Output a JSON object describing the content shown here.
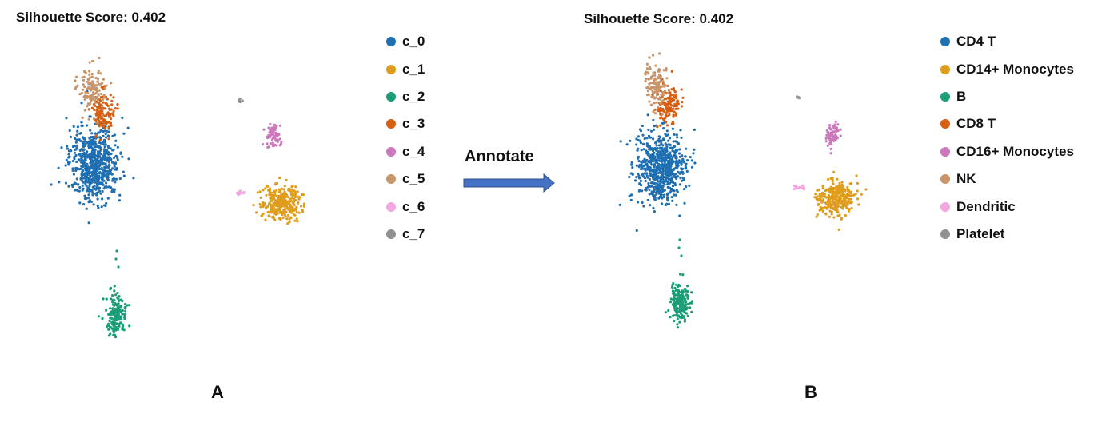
{
  "colors": {
    "c_0": "#1f6fb2",
    "c_1": "#e09d1c",
    "c_2": "#1a9e78",
    "c_3": "#d65f12",
    "c_4": "#cc78bc",
    "c_5": "#c8946a",
    "c_6": "#f2a7e0",
    "c_7": "#909090",
    "arrow": "#4472c4"
  },
  "annotation": {
    "arrow_label": "Annotate"
  },
  "chart_data": [
    {
      "type": "scatter",
      "title": "Silhouette Score: 0.402",
      "panel_label": "A",
      "legend_position": "right",
      "grid": false,
      "series": [
        {
          "name": "c_0",
          "color": "#1f6fb2",
          "center": [
            118,
            205
          ],
          "spread": [
            31,
            45
          ],
          "count": 650
        },
        {
          "name": "c_1",
          "color": "#e09d1c",
          "center": [
            352,
            254
          ],
          "spread": [
            24,
            22
          ],
          "count": 310
        },
        {
          "name": "c_2",
          "color": "#1a9e78",
          "center": [
            146,
            394
          ],
          "spread": [
            12,
            23
          ],
          "count": 175
        },
        {
          "name": "c_3",
          "color": "#d65f12",
          "center": [
            128,
            140
          ],
          "spread": [
            14,
            26
          ],
          "count": 130
        },
        {
          "name": "c_4",
          "color": "#cc78bc",
          "center": [
            342,
            171
          ],
          "spread": [
            9,
            15
          ],
          "count": 75
        },
        {
          "name": "c_5",
          "color": "#c8946a",
          "center": [
            115,
            110
          ],
          "spread": [
            16,
            30
          ],
          "count": 120
        },
        {
          "name": "c_6",
          "color": "#f2a7e0",
          "center": [
            300,
            241
          ],
          "spread": [
            8,
            3
          ],
          "count": 12
        },
        {
          "name": "c_7",
          "color": "#909090",
          "center": [
            300,
            127
          ],
          "spread": [
            3,
            3
          ],
          "count": 6
        }
      ]
    },
    {
      "type": "scatter",
      "title": "Silhouette Score: 0.402",
      "panel_label": "B",
      "legend_position": "right",
      "grid": false,
      "series": [
        {
          "name": "CD4 T",
          "color": "#1f6fb2",
          "center": [
            826,
            210
          ],
          "spread": [
            30,
            44
          ],
          "count": 650
        },
        {
          "name": "CD14+ Monocytes",
          "color": "#e09d1c",
          "center": [
            1045,
            248
          ],
          "spread": [
            23,
            22
          ],
          "count": 310
        },
        {
          "name": "B",
          "color": "#1a9e78",
          "center": [
            850,
            380
          ],
          "spread": [
            12,
            24
          ],
          "count": 175
        },
        {
          "name": "CD8 T",
          "color": "#d65f12",
          "center": [
            836,
            130
          ],
          "spread": [
            14,
            26
          ],
          "count": 130
        },
        {
          "name": "CD16+ Monocytes",
          "color": "#cc78bc",
          "center": [
            1041,
            167
          ],
          "spread": [
            9,
            15
          ],
          "count": 75
        },
        {
          "name": "NK",
          "color": "#c8946a",
          "center": [
            822,
            105
          ],
          "spread": [
            15,
            28
          ],
          "count": 120
        },
        {
          "name": "Dendritic",
          "color": "#f2a7e0",
          "center": [
            1000,
            235
          ],
          "spread": [
            9,
            3
          ],
          "count": 12
        },
        {
          "name": "Platelet",
          "color": "#909090",
          "center": [
            998,
            123
          ],
          "spread": [
            3,
            3
          ],
          "count": 6
        }
      ]
    }
  ]
}
